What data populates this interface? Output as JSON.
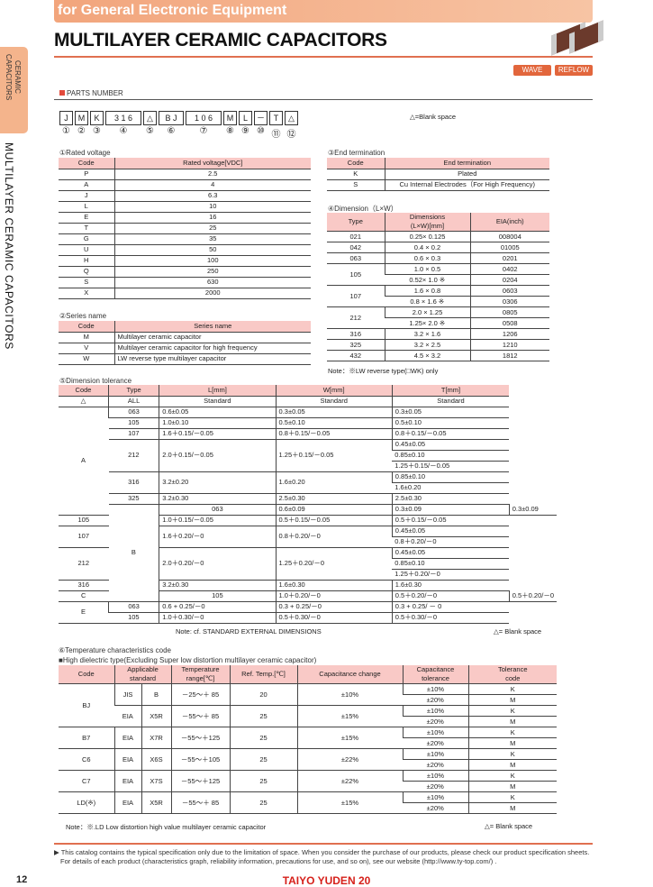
{
  "header": {
    "band": "for General Electronic Equipment",
    "title": "MULTILAYER CERAMIC CAPACITORS",
    "wave": "WAVE",
    "reflow": "REFLOW"
  },
  "side": {
    "tab": "CERAMIC\nCAPACITORS",
    "vertical": "MULTILAYER CERAMIC CAPACITORS"
  },
  "parts": {
    "heading": "PARTS NUMBER",
    "boxes": [
      "J",
      "M",
      "K",
      "3   1   6",
      "△",
      "B    J",
      "1   0   6",
      "M",
      "L",
      "－",
      "T",
      "△"
    ],
    "numbers": [
      "①",
      "②",
      "③",
      "④",
      "⑤",
      "⑥",
      "⑦",
      "⑧",
      "⑨",
      "⑩",
      "⑪",
      "⑫"
    ],
    "legend": "△=Blank space"
  },
  "t1": {
    "label": "①Rated voltage",
    "head": [
      [
        "Code",
        "Rated voltage[VDC]"
      ]
    ],
    "rows": [
      [
        "P",
        "2.5"
      ],
      [
        "A",
        "4"
      ],
      [
        "J",
        "6.3"
      ],
      [
        "L",
        "10"
      ],
      [
        "E",
        "16"
      ],
      [
        "T",
        "25"
      ],
      [
        "G",
        "35"
      ],
      [
        "U",
        "50"
      ],
      [
        "H",
        "100"
      ],
      [
        "Q",
        "250"
      ],
      [
        "S",
        "630"
      ],
      [
        "X",
        "2000"
      ]
    ]
  },
  "t2": {
    "label": "②Series name",
    "head": [
      [
        "Code",
        "Series name"
      ]
    ],
    "rows": [
      [
        "M",
        {
          "t": "Multilayer ceramic capacitor",
          "al": "l"
        }
      ],
      [
        "V",
        {
          "t": "Multilayer ceramic capacitor for high frequency",
          "al": "l"
        }
      ],
      [
        "W",
        {
          "t": "LW reverse type multilayer capacitor",
          "al": "l"
        }
      ]
    ]
  },
  "t3": {
    "label": "③End termination",
    "head": [
      [
        "Code",
        "End termination"
      ]
    ],
    "rows": [
      [
        "K",
        "Plated"
      ],
      [
        "S",
        "Cu Internal Electrodes（For High Frequency)"
      ]
    ]
  },
  "t4": {
    "label": "④Dimension（L×W）",
    "head": [
      [
        "Type",
        "Dimensions\n(L×W)[mm]",
        "EIA(inch)"
      ]
    ],
    "rows": [
      [
        "021",
        "0.25× 0.125",
        "008004"
      ],
      [
        "042",
        "0.4  × 0.2",
        "01005"
      ],
      [
        "063",
        "0.6  × 0.3",
        "0201"
      ],
      [
        {
          "t": "105",
          "rs": 2
        },
        "1.0  × 0.5",
        "0402"
      ],
      [
        "0.52× 1.0  ※",
        "0204"
      ],
      [
        {
          "t": "107",
          "rs": 2
        },
        "1.6  × 0.8",
        "0603"
      ],
      [
        "0.8  × 1.6  ※",
        "0306"
      ],
      [
        {
          "t": "212",
          "rs": 2
        },
        "2.0  × 1.25",
        "0805"
      ],
      [
        "1.25× 2.0  ※",
        "0508"
      ],
      [
        "316",
        "3.2  × 1.6",
        "1206"
      ],
      [
        "325",
        "3.2  × 2.5",
        "1210"
      ],
      [
        "432",
        "4.5  × 3.2",
        "1812"
      ]
    ],
    "note": "Note：※LW reverse type(□WK) only"
  },
  "t5": {
    "label": "⑤Dimension tolerance",
    "head": [
      [
        "Code",
        "Type",
        "L[mm]",
        "W[mm]",
        "T[mm]"
      ]
    ],
    "rows": [
      [
        "△",
        "ALL",
        "Standard",
        "Standard",
        "Standard"
      ],
      [
        {
          "t": "A",
          "rs": 10
        },
        "063",
        {
          "t": "0.6±0.05",
          "al": "l"
        },
        {
          "t": "0.3±0.05",
          "al": "l"
        },
        {
          "t": "0.3±0.05",
          "al": "l"
        }
      ],
      [
        "105",
        {
          "t": "1.0±0.10",
          "al": "l"
        },
        {
          "t": "0.5±0.10",
          "al": "l"
        },
        {
          "t": "0.5±0.10",
          "al": "l"
        }
      ],
      [
        "107",
        {
          "t": "1.6＋0.15/－0.05",
          "al": "l"
        },
        {
          "t": "0.8＋0.15/－0.05",
          "al": "l"
        },
        {
          "t": "0.8＋0.15/－0.05",
          "al": "l"
        }
      ],
      [
        {
          "t": "212",
          "rs": 3
        },
        {
          "t": "2.0＋0.15/－0.05",
          "al": "l",
          "rs": 3
        },
        {
          "t": "1.25＋0.15/－0.05",
          "al": "l",
          "rs": 3
        },
        {
          "t": "0.45±0.05",
          "al": "l"
        }
      ],
      [
        {
          "t": "0.85±0.10",
          "al": "l"
        }
      ],
      [
        {
          "t": "1.25＋0.15/－0.05",
          "al": "l"
        }
      ],
      [
        {
          "t": "316",
          "rs": 2
        },
        {
          "t": "3.2±0.20",
          "al": "l",
          "rs": 2
        },
        {
          "t": "1.6±0.20",
          "al": "l",
          "rs": 2
        },
        {
          "t": "0.85±0.10",
          "al": "l"
        }
      ],
      [
        {
          "t": "1.6±0.20",
          "al": "l"
        }
      ],
      [
        "325",
        {
          "t": "3.2±0.30",
          "al": "l"
        },
        {
          "t": "2.5±0.30",
          "al": "l"
        },
        {
          "t": "2.5±0.30",
          "al": "l"
        }
      ],
      [
        {
          "t": "B",
          "rs": 9
        },
        "063",
        {
          "t": "0.6±0.09",
          "al": "l"
        },
        {
          "t": "0.3±0.09",
          "al": "l"
        },
        {
          "t": "0.3±0.09",
          "al": "l"
        }
      ],
      [
        "105",
        {
          "t": "1.0＋0.15/－0.05",
          "al": "l"
        },
        {
          "t": "0.5＋0.15/－0.05",
          "al": "l"
        },
        {
          "t": "0.5＋0.15/－0.05",
          "al": "l"
        }
      ],
      [
        {
          "t": "107",
          "rs": 2
        },
        {
          "t": "1.6＋0.20/－0",
          "al": "l",
          "rs": 2
        },
        {
          "t": "0.8＋0.20/－0",
          "al": "l",
          "rs": 2
        },
        {
          "t": "0.45±0.05",
          "al": "l"
        }
      ],
      [
        {
          "t": "0.8＋0.20/－0",
          "al": "l"
        }
      ],
      [
        {
          "t": "212",
          "rs": 3
        },
        {
          "t": "2.0＋0.20/－0",
          "al": "l",
          "rs": 3
        },
        {
          "t": "1.25＋0.20/－0",
          "al": "l",
          "rs": 3
        },
        {
          "t": "0.45±0.05",
          "al": "l"
        }
      ],
      [
        {
          "t": "0.85±0.10",
          "al": "l"
        }
      ],
      [
        {
          "t": "1.25＋0.20/－0",
          "al": "l"
        }
      ],
      [
        "316",
        {
          "t": "3.2±0.30",
          "al": "l"
        },
        {
          "t": "1.6±0.30",
          "al": "l"
        },
        {
          "t": "1.6±0.30",
          "al": "l"
        }
      ],
      [
        "C",
        "105",
        {
          "t": "1.0＋0.20/－0",
          "al": "l"
        },
        {
          "t": "0.5＋0.20/－0",
          "al": "l"
        },
        {
          "t": "0.5＋0.20/－0",
          "al": "l"
        }
      ],
      [
        {
          "t": "E",
          "rs": 2
        },
        "063",
        {
          "t": "0.6 + 0.25/－0",
          "al": "l"
        },
        {
          "t": "0.3 + 0.25/－0",
          "al": "l"
        },
        {
          "t": "0.3 + 0.25/ － 0",
          "al": "l"
        }
      ],
      [
        "105",
        {
          "t": "1.0＋0.30/－0",
          "al": "l"
        },
        {
          "t": "0.5＋0.30/－0",
          "al": "l"
        },
        {
          "t": "0.5＋0.30/－0",
          "al": "l"
        }
      ]
    ],
    "note": "Note: cf. STANDARD EXTERNAL DIMENSIONS",
    "blank": "△= Blank space"
  },
  "t6": {
    "label": "⑥Temperature characteristics code",
    "sub": "■High dielectric type(Excluding Super low distortion multilayer ceramic capacitor)",
    "head": [
      [
        "Code",
        {
          "t": "Applicable\nstandard",
          "cs": 2
        },
        "Temperature\nrange[℃]",
        "Ref. Temp.[℃]",
        "Capacitance change",
        "Capacitance\ntolerance",
        "Tolerance\ncode"
      ]
    ],
    "rows": [
      [
        {
          "t": "BJ",
          "rs": 4
        },
        {
          "t": "JIS",
          "rs": 2
        },
        {
          "t": "B",
          "rs": 2
        },
        {
          "t": "－25～＋ 85",
          "rs": 2
        },
        {
          "t": "20",
          "rs": 2
        },
        {
          "t": "±10%",
          "rs": 2
        },
        "±10%",
        "K"
      ],
      [
        "±20%",
        "M"
      ],
      [
        {
          "t": "EIA",
          "rs": 2
        },
        {
          "t": "X5R",
          "rs": 2
        },
        {
          "t": "－55～＋ 85",
          "rs": 2
        },
        {
          "t": "25",
          "rs": 2
        },
        {
          "t": "±15%",
          "rs": 2
        },
        "±10%",
        "K"
      ],
      [
        "±20%",
        "M"
      ],
      [
        {
          "t": "B7",
          "rs": 2
        },
        {
          "t": "EIA",
          "rs": 2
        },
        {
          "t": "X7R",
          "rs": 2
        },
        {
          "t": "－55～＋125",
          "rs": 2
        },
        {
          "t": "25",
          "rs": 2
        },
        {
          "t": "±15%",
          "rs": 2
        },
        "±10%",
        "K"
      ],
      [
        "±20%",
        "M"
      ],
      [
        {
          "t": "C6",
          "rs": 2
        },
        {
          "t": "EIA",
          "rs": 2
        },
        {
          "t": "X6S",
          "rs": 2
        },
        {
          "t": "－55～＋105",
          "rs": 2
        },
        {
          "t": "25",
          "rs": 2
        },
        {
          "t": "±22%",
          "rs": 2
        },
        "±10%",
        "K"
      ],
      [
        "±20%",
        "M"
      ],
      [
        {
          "t": "C7",
          "rs": 2
        },
        {
          "t": "EIA",
          "rs": 2
        },
        {
          "t": "X7S",
          "rs": 2
        },
        {
          "t": "－55～＋125",
          "rs": 2
        },
        {
          "t": "25",
          "rs": 2
        },
        {
          "t": "±22%",
          "rs": 2
        },
        "±10%",
        "K"
      ],
      [
        "±20%",
        "M"
      ],
      [
        {
          "t": "LD(※)",
          "rs": 2
        },
        {
          "t": "EIA",
          "rs": 2
        },
        {
          "t": "X5R",
          "rs": 2
        },
        {
          "t": "－55～＋ 85",
          "rs": 2
        },
        {
          "t": "25",
          "rs": 2
        },
        {
          "t": "±15%",
          "rs": 2
        },
        "±10%",
        "K"
      ],
      [
        "±20%",
        "M"
      ]
    ],
    "note": "Note：※.LD Low distortion high value multilayer ceramic capacitor",
    "blank": "△= Blank space"
  },
  "footer": {
    "line1": "▶ This catalog contains the typical specification only due to the limitation of space.  When you consider the purchase of our products, please check our product specification sheets.",
    "line2": "For details of each product (characteristics graph, reliability information, precautions for use, and so on), see our website (http://www.ty-top.com/) .",
    "page": "12",
    "brand": "TAIYO YUDEN  20"
  },
  "colors": {
    "accent": "#e07050",
    "header_fill": "#f9c9c6",
    "brand": "#d6201a"
  }
}
